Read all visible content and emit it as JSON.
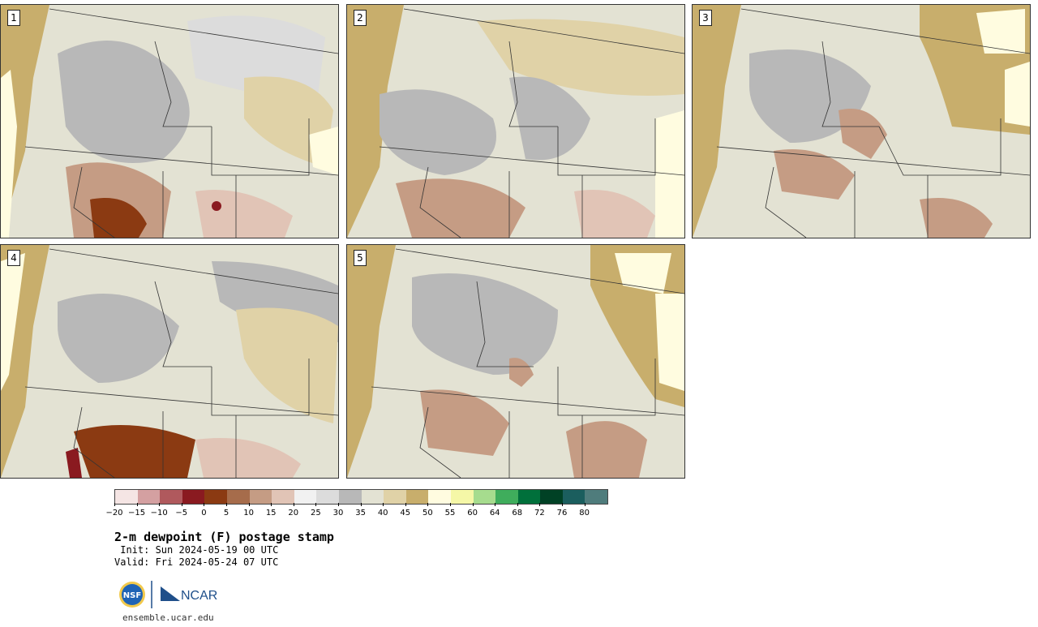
{
  "panels": [
    {
      "label": "1"
    },
    {
      "label": "2"
    },
    {
      "label": "3"
    },
    {
      "label": "4"
    },
    {
      "label": "5"
    }
  ],
  "colorbar": {
    "colors": [
      "#f5e5e4",
      "#d4a0a1",
      "#b0595d",
      "#8a1a20",
      "#8b3a12",
      "#a66c4b",
      "#c59c84",
      "#e1c4b6",
      "#f1f1f1",
      "#dcdcdc",
      "#b8b8b8",
      "#e3e2d3",
      "#e0d2a7",
      "#c8ae6c",
      "#fffce0",
      "#f5f7a7",
      "#a6dc8e",
      "#3fad5c",
      "#00703b",
      "#004125",
      "#1b5e5e",
      "#4f7c7c"
    ],
    "ticks": [
      "−20",
      "−15",
      "−10",
      "−5",
      "0",
      "5",
      "10",
      "15",
      "20",
      "25",
      "30",
      "35",
      "40",
      "45",
      "50",
      "55",
      "60",
      "64",
      "68",
      "72",
      "76",
      "80"
    ]
  },
  "title": "2-m dewpoint (F) postage stamp",
  "init": " Init: Sun 2024-05-19 00 UTC",
  "valid": "Valid: Fri 2024-05-24 07 UTC",
  "logo": {
    "nsf": "NSF",
    "ncar": "NCAR"
  },
  "url": "ensemble.ucar.edu"
}
